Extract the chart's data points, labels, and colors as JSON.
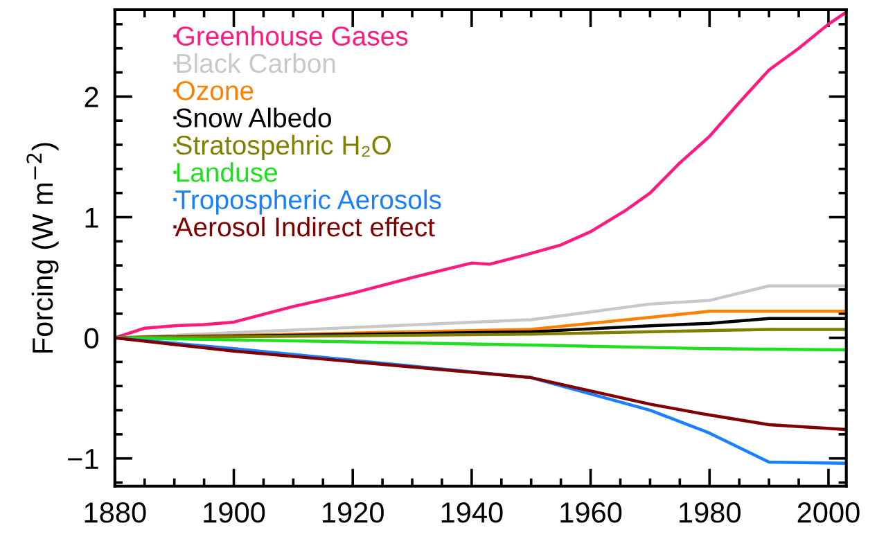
{
  "chart_data": {
    "type": "line",
    "ylabel": "Forcing (W m$^{−2}$)",
    "xlim": [
      1880,
      2003
    ],
    "xticks": [
      1880,
      1900,
      1920,
      1940,
      1960,
      1980,
      2000
    ],
    "ylim": [
      -1.23,
      2.72
    ],
    "yticks": [
      {
        "value": -1,
        "label": "−1"
      },
      0,
      1,
      2
    ],
    "grid": false,
    "legend": "top left",
    "marker": "none",
    "line_style": "solid",
    "series": [
      {
        "name": "Greenhouse Gases",
        "color": "#ff1a7f",
        "x": [
          1880,
          1885,
          1890,
          1895,
          1900,
          1910,
          1920,
          1930,
          1940,
          1943,
          1950,
          1955,
          1960,
          1966,
          1970,
          1975,
          1980,
          1985,
          1990,
          1995,
          2000,
          2003
        ],
        "values": [
          0,
          0.08,
          0.1,
          0.11,
          0.13,
          0.26,
          0.37,
          0.5,
          0.62,
          0.61,
          0.7,
          0.77,
          0.88,
          1.06,
          1.2,
          1.45,
          1.67,
          1.95,
          2.22,
          2.4,
          2.6,
          2.7
        ]
      },
      {
        "name": "Black Carbon",
        "color": "#c8c8c8",
        "x": [
          1880,
          1950,
          1970,
          1980,
          1990,
          2003
        ],
        "values": [
          0,
          0.15,
          0.28,
          0.31,
          0.43,
          0.43
        ]
      },
      {
        "name": "Ozone",
        "color": "#ff8000",
        "x": [
          1880,
          1950,
          1980,
          2003
        ],
        "values": [
          0,
          0.07,
          0.22,
          0.22
        ]
      },
      {
        "name": "Snow Albedo",
        "color": "#000000",
        "x": [
          1880,
          1950,
          1970,
          1980,
          1990,
          2003
        ],
        "values": [
          0,
          0.05,
          0.1,
          0.12,
          0.16,
          0.16
        ]
      },
      {
        "name": "Stratospehric H₂O",
        "color": "#7f7f00",
        "x": [
          1880,
          1950,
          1990,
          2003
        ],
        "values": [
          0,
          0.03,
          0.07,
          0.07
        ]
      },
      {
        "name": "Landuse",
        "color": "#1ee01e",
        "x": [
          1880,
          1950,
          1980,
          2003
        ],
        "values": [
          0,
          -0.06,
          -0.09,
          -0.1
        ]
      },
      {
        "name": "Tropospheric Aerosols",
        "color": "#1a80ff",
        "x": [
          1880,
          1900,
          1950,
          1970,
          1980,
          1990,
          2003
        ],
        "values": [
          0,
          -0.09,
          -0.33,
          -0.6,
          -0.79,
          -1.03,
          -1.04
        ]
      },
      {
        "name": "Aerosol Indirect effect",
        "color": "#800000",
        "x": [
          1880,
          1900,
          1950,
          1970,
          1980,
          1990,
          2003
        ],
        "values": [
          0,
          -0.11,
          -0.33,
          -0.55,
          -0.64,
          -0.72,
          -0.76
        ]
      }
    ]
  }
}
